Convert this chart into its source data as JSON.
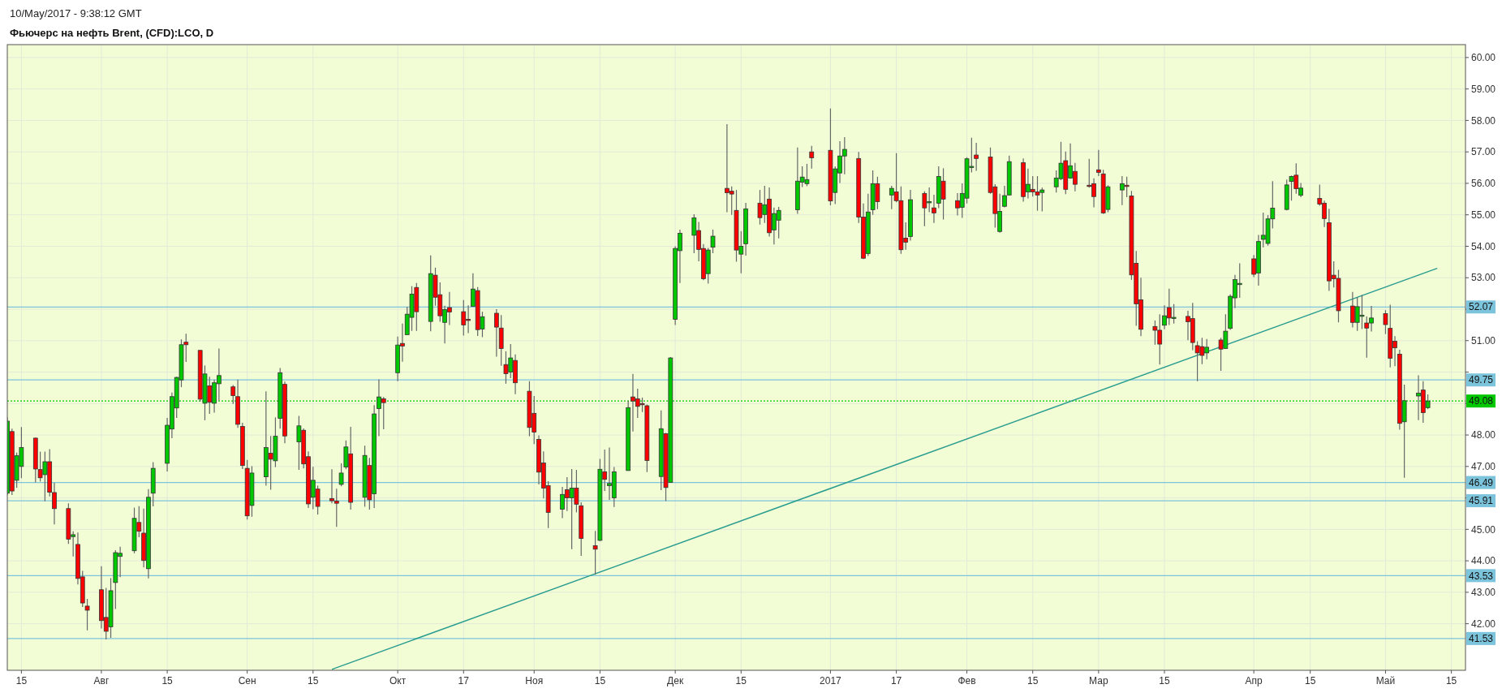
{
  "chart_data": {
    "type": "candlestick",
    "title": "Фьючерс на нефть Brent, (CFD):LCO, D",
    "annotations": [
      "10/May/2017 - 9:38:12 GMT"
    ],
    "x": [
      "2016-07-12",
      "2016-07-13",
      "2016-07-14",
      "2016-07-15",
      "2016-07-18",
      "2016-07-19",
      "2016-07-20",
      "2016-07-21",
      "2016-07-22",
      "2016-07-25",
      "2016-07-26",
      "2016-07-27",
      "2016-07-28",
      "2016-07-29",
      "2016-08-01",
      "2016-08-02",
      "2016-08-03",
      "2016-08-04",
      "2016-08-05",
      "2016-08-08",
      "2016-08-09",
      "2016-08-10",
      "2016-08-11",
      "2016-08-12",
      "2016-08-15",
      "2016-08-16",
      "2016-08-17",
      "2016-08-18",
      "2016-08-19",
      "2016-08-22",
      "2016-08-23",
      "2016-08-24",
      "2016-08-25",
      "2016-08-26",
      "2016-08-29",
      "2016-08-30",
      "2016-08-31",
      "2016-09-01",
      "2016-09-02",
      "2016-09-05",
      "2016-09-06",
      "2016-09-07",
      "2016-09-08",
      "2016-09-09",
      "2016-09-12",
      "2016-09-13",
      "2016-09-14",
      "2016-09-15",
      "2016-09-16",
      "2016-09-19",
      "2016-09-20",
      "2016-09-21",
      "2016-09-22",
      "2016-09-23",
      "2016-09-26",
      "2016-09-27",
      "2016-09-28",
      "2016-09-29",
      "2016-09-30",
      "2016-10-03",
      "2016-10-04",
      "2016-10-05",
      "2016-10-06",
      "2016-10-07",
      "2016-10-10",
      "2016-10-11",
      "2016-10-12",
      "2016-10-13",
      "2016-10-14",
      "2016-10-17",
      "2016-10-18",
      "2016-10-19",
      "2016-10-20",
      "2016-10-21",
      "2016-10-24",
      "2016-10-25",
      "2016-10-26",
      "2016-10-27",
      "2016-10-28",
      "2016-10-31",
      "2016-11-01",
      "2016-11-02",
      "2016-11-03",
      "2016-11-04",
      "2016-11-07",
      "2016-11-08",
      "2016-11-09",
      "2016-11-10",
      "2016-11-11",
      "2016-11-14",
      "2016-11-15",
      "2016-11-16",
      "2016-11-17",
      "2016-11-18",
      "2016-11-21",
      "2016-11-22",
      "2016-11-23",
      "2016-11-24",
      "2016-11-25",
      "2016-11-28",
      "2016-11-29",
      "2016-11-30",
      "2016-12-01",
      "2016-12-02",
      "2016-12-05",
      "2016-12-06",
      "2016-12-07",
      "2016-12-08",
      "2016-12-09",
      "2016-12-12",
      "2016-12-13",
      "2016-12-14",
      "2016-12-15",
      "2016-12-16",
      "2016-12-19",
      "2016-12-20",
      "2016-12-21",
      "2016-12-22",
      "2016-12-23",
      "2016-12-27",
      "2016-12-28",
      "2016-12-29",
      "2016-12-30",
      "2017-01-03",
      "2017-01-04",
      "2017-01-05",
      "2017-01-06",
      "2017-01-09",
      "2017-01-10",
      "2017-01-11",
      "2017-01-12",
      "2017-01-13",
      "2017-01-16",
      "2017-01-17",
      "2017-01-18",
      "2017-01-19",
      "2017-01-20",
      "2017-01-23",
      "2017-01-24",
      "2017-01-25",
      "2017-01-26",
      "2017-01-27",
      "2017-01-30",
      "2017-01-31",
      "2017-02-01",
      "2017-02-02",
      "2017-02-03",
      "2017-02-06",
      "2017-02-07",
      "2017-02-08",
      "2017-02-09",
      "2017-02-10",
      "2017-02-13",
      "2017-02-14",
      "2017-02-15",
      "2017-02-16",
      "2017-02-17",
      "2017-02-20",
      "2017-02-21",
      "2017-02-22",
      "2017-02-23",
      "2017-02-24",
      "2017-02-27",
      "2017-02-28",
      "2017-03-01",
      "2017-03-02",
      "2017-03-03",
      "2017-03-06",
      "2017-03-07",
      "2017-03-08",
      "2017-03-09",
      "2017-03-10",
      "2017-03-13",
      "2017-03-14",
      "2017-03-15",
      "2017-03-16",
      "2017-03-17",
      "2017-03-20",
      "2017-03-21",
      "2017-03-22",
      "2017-03-23",
      "2017-03-24",
      "2017-03-27",
      "2017-03-28",
      "2017-03-29",
      "2017-03-30",
      "2017-03-31",
      "2017-04-03",
      "2017-04-04",
      "2017-04-05",
      "2017-04-06",
      "2017-04-07",
      "2017-04-10",
      "2017-04-11",
      "2017-04-12",
      "2017-04-13",
      "2017-04-17",
      "2017-04-18",
      "2017-04-19",
      "2017-04-20",
      "2017-04-21",
      "2017-04-24",
      "2017-04-25",
      "2017-04-26",
      "2017-04-27",
      "2017-04-28",
      "2017-05-01",
      "2017-05-02",
      "2017-05-03",
      "2017-05-04",
      "2017-05-05",
      "2017-05-08",
      "2017-05-09",
      "2017-05-10"
    ],
    "ohlc": [
      [
        46.15,
        48.56,
        46.09,
        48.44
      ],
      [
        48.11,
        48.2,
        46.09,
        46.22
      ],
      [
        46.56,
        47.44,
        46.32,
        47.34
      ],
      [
        47.0,
        48.25,
        46.63,
        47.6
      ],
      [
        47.9,
        47.92,
        46.49,
        46.92
      ],
      [
        46.9,
        47.47,
        46.52,
        46.64
      ],
      [
        46.74,
        47.47,
        45.89,
        47.15
      ],
      [
        47.15,
        47.55,
        46.05,
        46.18
      ],
      [
        46.17,
        46.48,
        45.16,
        45.66
      ],
      [
        45.66,
        45.83,
        44.54,
        44.69
      ],
      [
        44.77,
        44.94,
        44.14,
        44.83
      ],
      [
        44.52,
        44.9,
        43.25,
        43.44
      ],
      [
        43.49,
        43.68,
        42.53,
        42.66
      ],
      [
        42.56,
        42.79,
        41.79,
        42.43
      ],
      [
        43.08,
        43.83,
        41.85,
        42.1
      ],
      [
        42.2,
        43.14,
        41.5,
        41.76
      ],
      [
        41.9,
        43.45,
        41.55,
        43.05
      ],
      [
        43.31,
        44.34,
        42.47,
        44.26
      ],
      [
        44.14,
        44.45,
        43.48,
        44.24
      ],
      [
        44.32,
        45.69,
        44.24,
        45.35
      ],
      [
        45.22,
        45.74,
        44.75,
        44.94
      ],
      [
        44.88,
        45.66,
        43.79,
        44.01
      ],
      [
        43.75,
        46.28,
        43.44,
        46.02
      ],
      [
        46.15,
        47.14,
        45.73,
        46.94
      ],
      [
        47.1,
        48.54,
        46.84,
        48.31
      ],
      [
        48.19,
        49.35,
        47.9,
        49.22
      ],
      [
        48.86,
        49.85,
        48.54,
        49.83
      ],
      [
        49.75,
        51.04,
        49.52,
        50.87
      ],
      [
        50.95,
        51.22,
        50.32,
        50.87
      ],
      [
        50.69,
        50.7,
        49.06,
        49.14
      ],
      [
        49.01,
        50.21,
        48.47,
        49.94
      ],
      [
        49.56,
        49.85,
        48.67,
        49.04
      ],
      [
        49.01,
        49.76,
        48.71,
        49.66
      ],
      [
        49.63,
        50.75,
        49.1,
        49.89
      ],
      [
        49.53,
        49.59,
        48.99,
        49.25
      ],
      [
        49.22,
        49.76,
        48.23,
        48.34
      ],
      [
        48.27,
        48.39,
        46.92,
        47.03
      ],
      [
        46.94,
        47.21,
        45.31,
        45.43
      ],
      [
        45.76,
        47.01,
        45.4,
        46.79
      ],
      [
        46.67,
        49.39,
        46.39,
        47.6
      ],
      [
        47.42,
        47.97,
        46.26,
        47.23
      ],
      [
        47.18,
        48.56,
        46.98,
        47.96
      ],
      [
        48.53,
        50.13,
        48.2,
        49.98
      ],
      [
        49.61,
        49.7,
        47.74,
        47.97
      ],
      [
        47.78,
        48.61,
        46.89,
        48.29
      ],
      [
        48.15,
        48.21,
        46.94,
        47.08
      ],
      [
        47.31,
        47.48,
        45.68,
        45.81
      ],
      [
        46.02,
        46.99,
        45.64,
        46.56
      ],
      [
        46.28,
        46.39,
        45.47,
        45.73
      ],
      [
        45.98,
        46.91,
        45.83,
        45.91
      ],
      [
        45.9,
        46.29,
        45.08,
        45.83
      ],
      [
        46.43,
        47.1,
        46.37,
        46.79
      ],
      [
        46.98,
        47.83,
        46.91,
        47.62
      ],
      [
        47.4,
        48.26,
        45.63,
        45.86
      ],
      [
        46.02,
        47.66,
        45.72,
        47.35
      ],
      [
        47.03,
        47.27,
        45.63,
        45.94
      ],
      [
        46.13,
        48.95,
        45.68,
        48.67
      ],
      [
        48.84,
        49.77,
        47.96,
        49.21
      ],
      [
        49.15,
        49.21,
        48.18,
        49.03
      ],
      [
        49.98,
        51.13,
        49.71,
        50.86
      ],
      [
        50.91,
        51.54,
        50.33,
        50.83
      ],
      [
        51.19,
        52.08,
        51.19,
        51.84
      ],
      [
        51.74,
        52.73,
        51.31,
        52.48
      ],
      [
        52.69,
        52.83,
        51.31,
        51.92
      ],
      [
        51.61,
        53.71,
        51.3,
        53.13
      ],
      [
        53.08,
        53.32,
        52.11,
        52.38
      ],
      [
        52.46,
        52.85,
        51.6,
        51.79
      ],
      [
        51.58,
        52.11,
        50.91,
        51.99
      ],
      [
        52.05,
        52.55,
        51.5,
        51.91
      ],
      [
        51.92,
        52.29,
        51.16,
        51.5
      ],
      [
        51.68,
        52.12,
        51.24,
        51.65
      ],
      [
        52.09,
        53.14,
        52.09,
        52.64
      ],
      [
        52.59,
        52.7,
        51.15,
        51.35
      ],
      [
        51.37,
        51.92,
        51.11,
        51.76
      ],
      [
        51.87,
        52.0,
        50.49,
        51.43
      ],
      [
        51.4,
        51.81,
        50.2,
        50.75
      ],
      [
        50.24,
        50.66,
        49.63,
        49.95
      ],
      [
        50.0,
        50.89,
        49.81,
        50.45
      ],
      [
        50.37,
        50.56,
        49.3,
        49.66
      ],
      [
        49.39,
        49.71,
        47.96,
        48.24
      ],
      [
        48.69,
        49.24,
        47.71,
        48.09
      ],
      [
        47.86,
        47.99,
        46.43,
        46.82
      ],
      [
        47.11,
        47.48,
        45.98,
        46.31
      ],
      [
        46.39,
        46.53,
        45.04,
        45.54
      ],
      [
        45.64,
        46.35,
        45.36,
        46.11
      ],
      [
        46.26,
        46.66,
        45.58,
        46.0
      ],
      [
        46.0,
        46.92,
        44.37,
        46.31
      ],
      [
        46.31,
        46.89,
        45.54,
        45.8
      ],
      [
        45.75,
        45.86,
        44.16,
        44.71
      ],
      [
        44.48,
        44.95,
        43.56,
        44.37
      ],
      [
        44.65,
        47.24,
        44.63,
        46.91
      ],
      [
        46.83,
        47.54,
        46.22,
        46.59
      ],
      [
        46.39,
        47.6,
        45.94,
        46.46
      ],
      [
        46.0,
        46.98,
        45.71,
        46.83
      ],
      [
        46.87,
        49.09,
        46.87,
        48.87
      ],
      [
        49.21,
        49.94,
        48.11,
        49.08
      ],
      [
        49.15,
        49.47,
        48.54,
        48.91
      ],
      [
        49.0,
        49.19,
        48.73,
        48.97
      ],
      [
        48.93,
        48.97,
        46.82,
        47.19
      ],
      [
        46.68,
        48.78,
        46.25,
        48.2
      ],
      [
        48.04,
        48.07,
        45.9,
        46.33
      ],
      [
        46.49,
        50.48,
        46.49,
        50.45
      ],
      [
        51.68,
        54.0,
        51.5,
        53.93
      ],
      [
        53.86,
        54.53,
        52.83,
        54.41
      ],
      [
        54.35,
        55.02,
        53.78,
        54.9
      ],
      [
        54.5,
        54.77,
        53.52,
        53.9
      ],
      [
        53.93,
        54.07,
        52.92,
        52.97
      ],
      [
        53.13,
        53.95,
        52.81,
        53.88
      ],
      [
        53.97,
        54.53,
        53.78,
        54.32
      ],
      [
        55.84,
        57.88,
        55.08,
        55.7
      ],
      [
        55.75,
        55.9,
        55.0,
        55.66
      ],
      [
        55.14,
        55.79,
        53.51,
        53.88
      ],
      [
        53.75,
        54.48,
        53.14,
        54.0
      ],
      [
        54.08,
        55.38,
        53.7,
        55.19
      ],
      [
        55.37,
        55.79,
        54.69,
        54.91
      ],
      [
        55.01,
        55.92,
        54.74,
        55.32
      ],
      [
        55.5,
        55.87,
        54.31,
        54.43
      ],
      [
        54.52,
        55.23,
        54.06,
        55.04
      ],
      [
        54.83,
        55.25,
        54.25,
        55.14
      ],
      [
        55.16,
        57.14,
        55.03,
        56.07
      ],
      [
        56.04,
        56.54,
        55.88,
        56.2
      ],
      [
        55.99,
        56.62,
        55.91,
        56.12
      ],
      [
        57.0,
        57.19,
        56.47,
        56.81
      ],
      [
        57.05,
        58.38,
        55.3,
        55.44
      ],
      [
        55.71,
        56.54,
        55.34,
        56.46
      ],
      [
        56.33,
        57.34,
        56.01,
        56.87
      ],
      [
        56.87,
        57.47,
        56.29,
        57.08
      ],
      [
        56.79,
        57.0,
        54.74,
        54.93
      ],
      [
        54.93,
        55.36,
        53.59,
        53.62
      ],
      [
        53.77,
        55.67,
        53.69,
        55.09
      ],
      [
        55.16,
        56.41,
        55.0,
        55.99
      ],
      [
        55.99,
        56.21,
        55.18,
        55.42
      ],
      [
        55.63,
        55.92,
        55.18,
        55.84
      ],
      [
        55.73,
        56.96,
        55.4,
        55.45
      ],
      [
        55.45,
        55.9,
        53.76,
        53.89
      ],
      [
        54.26,
        54.76,
        53.89,
        54.13
      ],
      [
        54.31,
        55.79,
        54.18,
        55.48
      ],
      [
        55.68,
        55.75,
        54.64,
        55.22
      ],
      [
        55.4,
        55.87,
        55.08,
        55.42
      ],
      [
        55.22,
        55.64,
        54.74,
        55.06
      ],
      [
        55.37,
        56.54,
        55.21,
        56.22
      ],
      [
        56.07,
        56.48,
        54.85,
        55.5
      ],
      [
        55.45,
        55.69,
        54.98,
        55.22
      ],
      [
        55.24,
        56.0,
        54.9,
        55.68
      ],
      [
        55.53,
        56.83,
        55.36,
        56.78
      ],
      [
        56.51,
        57.45,
        56.35,
        56.54
      ],
      [
        56.9,
        57.29,
        56.4,
        56.79
      ],
      [
        56.84,
        57.14,
        55.67,
        55.71
      ],
      [
        55.89,
        55.97,
        54.59,
        55.04
      ],
      [
        54.47,
        55.67,
        54.43,
        55.11
      ],
      [
        55.27,
        55.92,
        55.24,
        55.61
      ],
      [
        55.63,
        56.88,
        55.61,
        56.69
      ],
      [
        56.66,
        56.79,
        55.42,
        55.58
      ],
      [
        55.73,
        56.47,
        55.52,
        55.97
      ],
      [
        55.81,
        56.23,
        55.58,
        55.73
      ],
      [
        55.73,
        56.23,
        55.13,
        55.63
      ],
      [
        55.71,
        55.86,
        55.11,
        55.79
      ],
      [
        55.89,
        56.41,
        55.71,
        56.17
      ],
      [
        56.15,
        57.32,
        56.1,
        56.64
      ],
      [
        56.72,
        57.01,
        55.66,
        55.81
      ],
      [
        56.17,
        57.27,
        56.15,
        56.56
      ],
      [
        56.38,
        56.65,
        55.75,
        55.97
      ],
      [
        55.94,
        56.78,
        55.86,
        55.92
      ],
      [
        55.99,
        56.16,
        55.24,
        55.58
      ],
      [
        56.43,
        57.06,
        56.23,
        56.35
      ],
      [
        56.3,
        56.43,
        55.03,
        55.06
      ],
      [
        55.17,
        55.94,
        55.08,
        55.89
      ],
      [
        55.79,
        56.23,
        55.31,
        55.99
      ],
      [
        55.94,
        56.21,
        55.56,
        55.9
      ],
      [
        55.6,
        55.76,
        52.93,
        53.09
      ],
      [
        53.46,
        53.85,
        51.47,
        52.17
      ],
      [
        52.3,
        53.0,
        51.14,
        51.36
      ],
      [
        51.45,
        51.64,
        50.87,
        51.33
      ],
      [
        51.33,
        51.84,
        50.24,
        50.89
      ],
      [
        51.49,
        52.12,
        51.36,
        51.79
      ],
      [
        52.05,
        52.65,
        51.5,
        51.72
      ],
      [
        51.72,
        52.16,
        51.54,
        51.74
      ],
      [
        51.77,
        51.95,
        51.01,
        51.6
      ],
      [
        51.7,
        52.2,
        50.7,
        50.94
      ],
      [
        50.84,
        50.98,
        49.71,
        50.61
      ],
      [
        50.81,
        51.09,
        50.25,
        50.53
      ],
      [
        50.61,
        51.05,
        50.41,
        50.79
      ],
      [
        51.02,
        51.09,
        50.04,
        50.73
      ],
      [
        50.75,
        51.84,
        50.75,
        51.3
      ],
      [
        51.39,
        52.47,
        51.34,
        52.41
      ],
      [
        52.36,
        53.09,
        52.03,
        52.94
      ],
      [
        52.8,
        53.46,
        52.36,
        52.82
      ],
      [
        53.6,
        53.72,
        53.02,
        53.11
      ],
      [
        53.15,
        54.36,
        52.75,
        54.15
      ],
      [
        54.22,
        55.07,
        53.97,
        54.35
      ],
      [
        54.09,
        54.99,
        54.02,
        54.87
      ],
      [
        54.87,
        56.07,
        54.57,
        55.21
      ],
      [
        55.17,
        56.12,
        55.14,
        55.95
      ],
      [
        56.06,
        56.25,
        55.45,
        56.22
      ],
      [
        56.26,
        56.64,
        55.67,
        55.83
      ],
      [
        55.62,
        56.01,
        55.56,
        55.85
      ],
      [
        55.52,
        55.96,
        55.29,
        55.34
      ],
      [
        55.37,
        55.45,
        54.61,
        54.88
      ],
      [
        54.75,
        55.19,
        52.58,
        52.9
      ],
      [
        53.08,
        53.52,
        52.69,
        52.97
      ],
      [
        52.98,
        53.25,
        51.58,
        51.95
      ],
      [
        52.1,
        52.55,
        51.42,
        51.58
      ],
      [
        51.58,
        52.38,
        51.31,
        52.08
      ],
      [
        51.78,
        52.45,
        51.37,
        51.81
      ],
      [
        51.56,
        51.77,
        50.46,
        51.4
      ],
      [
        51.56,
        52.1,
        51.29,
        51.72
      ],
      [
        51.86,
        51.97,
        51.21,
        51.51
      ],
      [
        51.39,
        52.14,
        50.15,
        50.44
      ],
      [
        50.98,
        51.14,
        50.19,
        50.77
      ],
      [
        50.57,
        50.71,
        48.17,
        48.37
      ],
      [
        48.42,
        49.6,
        46.64,
        49.09
      ],
      [
        49.24,
        49.9,
        48.47,
        49.33
      ],
      [
        49.43,
        49.71,
        48.39,
        48.71
      ],
      [
        48.87,
        49.29,
        48.82,
        49.08
      ]
    ],
    "series": [
      {
        "type": "line",
        "x": [
          "2016-09-19",
          "2017-05-12"
        ],
        "values": [
          40.55,
          53.3
        ],
        "color": "#2a9d8f"
      }
    ],
    "xlim": [
      "2016-07-12",
      "2017-05-18"
    ],
    "xticks": [
      {
        "value": "2016-07-15",
        "label": "15"
      },
      {
        "value": "2016-08-01",
        "label": "Авг"
      },
      {
        "value": "2016-08-15",
        "label": "15"
      },
      {
        "value": "2016-09-01",
        "label": "Сен"
      },
      {
        "value": "2016-09-15",
        "label": "15"
      },
      {
        "value": "2016-10-03",
        "label": "Окт"
      },
      {
        "value": "2016-10-17",
        "label": "17"
      },
      {
        "value": "2016-11-01",
        "label": "Ноя"
      },
      {
        "value": "2016-11-15",
        "label": "15"
      },
      {
        "value": "2016-12-01",
        "label": "Дек"
      },
      {
        "value": "2016-12-15",
        "label": "15"
      },
      {
        "value": "2017-01-03",
        "label": "2017"
      },
      {
        "value": "2017-01-17",
        "label": "17"
      },
      {
        "value": "2017-02-01",
        "label": "Фев"
      },
      {
        "value": "2017-02-15",
        "label": "15"
      },
      {
        "value": "2017-03-01",
        "label": "Мар"
      },
      {
        "value": "2017-03-15",
        "label": "15"
      },
      {
        "value": "2017-04-03",
        "label": "Апр"
      },
      {
        "value": "2017-04-15",
        "label": "15"
      },
      {
        "value": "2017-05-01",
        "label": "Май"
      },
      {
        "value": "2017-05-15",
        "label": "15"
      }
    ],
    "ylim": [
      40.52,
      60.41
    ],
    "yticks": [
      {
        "value": 42,
        "label": "42.00"
      },
      {
        "value": 43,
        "label": "43.00"
      },
      {
        "value": 44,
        "label": "44.00"
      },
      {
        "value": 45,
        "label": "45.00"
      },
      {
        "value": 46,
        "label": null
      },
      {
        "value": 47,
        "label": "47.00"
      },
      {
        "value": 48,
        "label": "48.00"
      },
      {
        "value": 49,
        "label": null
      },
      {
        "value": 50,
        "label": null
      },
      {
        "value": 51,
        "label": "51.00"
      },
      {
        "value": 52,
        "label": null
      },
      {
        "value": 53,
        "label": "53.00"
      },
      {
        "value": 54,
        "label": "54.00"
      },
      {
        "value": 55,
        "label": "55.00"
      },
      {
        "value": 56,
        "label": "56.00"
      },
      {
        "value": 57,
        "label": "57.00"
      },
      {
        "value": 58,
        "label": "58.00"
      },
      {
        "value": 59,
        "label": "59.00"
      },
      {
        "value": 60,
        "label": "60.00"
      }
    ],
    "ref_lines": [
      {
        "axis": "y",
        "value": 52.07,
        "label": "52.07",
        "color": "#7cc3dc"
      },
      {
        "axis": "y",
        "value": 49.75,
        "label": "49.75",
        "color": "#7cc3dc"
      },
      {
        "axis": "y",
        "value": 49.08,
        "label": "49.08",
        "color": "#00c800",
        "line_style": "dotted"
      },
      {
        "axis": "y",
        "value": 46.49,
        "label": "46.49",
        "color": "#7cc3dc"
      },
      {
        "axis": "y",
        "value": 45.91,
        "label": "45.91",
        "color": "#7cc3dc"
      },
      {
        "axis": "y",
        "value": 43.53,
        "label": "43.53",
        "color": "#7cc3dc"
      },
      {
        "axis": "y",
        "value": 41.53,
        "label": "41.53",
        "color": "#7cc3dc"
      }
    ],
    "grid": true
  }
}
